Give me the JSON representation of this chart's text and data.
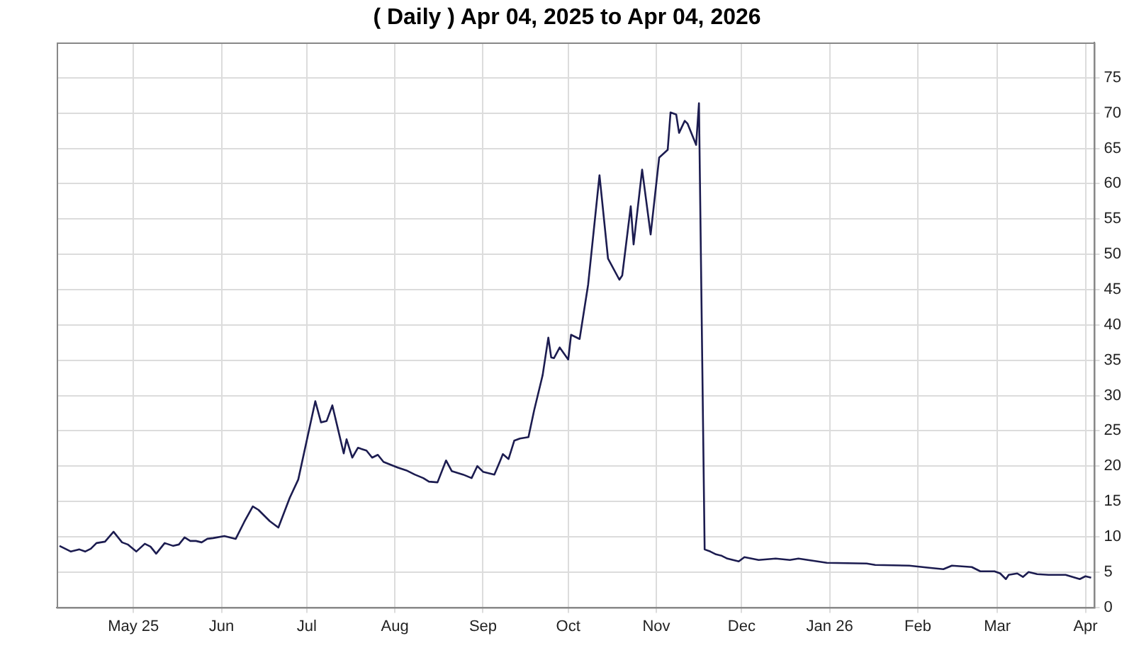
{
  "chart_data": {
    "type": "line",
    "title": "( Daily ) Apr 04, 2025 to Apr 04, 2026",
    "x": [
      "2025-04-05",
      "2025-04-09",
      "2025-04-12",
      "2025-04-14",
      "2025-04-16",
      "2025-04-18",
      "2025-04-21",
      "2025-04-24",
      "2025-04-27",
      "2025-04-29",
      "2025-05-02",
      "2025-05-05",
      "2025-05-07",
      "2025-05-09",
      "2025-05-12",
      "2025-05-15",
      "2025-05-17",
      "2025-05-19",
      "2025-05-21",
      "2025-05-23",
      "2025-05-25",
      "2025-05-27",
      "2025-05-29",
      "2025-06-02",
      "2025-06-06",
      "2025-06-09",
      "2025-06-12",
      "2025-06-14",
      "2025-06-17",
      "2025-06-18",
      "2025-06-21",
      "2025-06-25",
      "2025-06-28",
      "2025-07-04",
      "2025-07-06",
      "2025-07-08",
      "2025-07-10",
      "2025-07-12",
      "2025-07-14",
      "2025-07-15",
      "2025-07-17",
      "2025-07-19",
      "2025-07-22",
      "2025-07-24",
      "2025-07-26",
      "2025-07-28",
      "2025-08-02",
      "2025-08-05",
      "2025-08-08",
      "2025-08-11",
      "2025-08-13",
      "2025-08-16",
      "2025-08-19",
      "2025-08-21",
      "2025-08-25",
      "2025-08-28",
      "2025-08-30",
      "2025-09-01",
      "2025-09-05",
      "2025-09-07",
      "2025-09-08",
      "2025-09-10",
      "2025-09-12",
      "2025-09-14",
      "2025-09-17",
      "2025-09-19",
      "2025-09-22",
      "2025-09-24",
      "2025-09-25",
      "2025-09-26",
      "2025-09-28",
      "2025-10-01",
      "2025-10-02",
      "2025-10-05",
      "2025-10-08",
      "2025-10-12",
      "2025-10-15",
      "2025-10-19",
      "2025-10-20",
      "2025-10-23",
      "2025-10-24",
      "2025-10-27",
      "2025-10-30",
      "2025-11-02",
      "2025-11-05",
      "2025-11-06",
      "2025-11-08",
      "2025-11-09",
      "2025-11-11",
      "2025-11-12",
      "2025-11-15",
      "2025-11-16",
      "2025-11-18",
      "2025-11-20",
      "2025-11-22",
      "2025-11-24",
      "2025-11-26",
      "2025-11-28",
      "2025-11-30",
      "2025-12-02",
      "2025-12-07",
      "2025-12-13",
      "2025-12-18",
      "2025-12-21",
      "2025-12-31",
      "2026-01-14",
      "2026-01-17",
      "2026-01-29",
      "2026-02-05",
      "2026-02-10",
      "2026-02-13",
      "2026-02-20",
      "2026-02-23",
      "2026-02-28",
      "2026-03-02",
      "2026-03-04",
      "2026-03-05",
      "2026-03-08",
      "2026-03-10",
      "2026-03-12",
      "2026-03-15",
      "2026-03-19",
      "2026-03-25",
      "2026-03-30",
      "2026-04-01",
      "2026-04-03"
    ],
    "series": [
      {
        "color": "#1c1c50",
        "values": [
          8.7,
          7.9,
          8.2,
          7.9,
          8.3,
          9.1,
          9.3,
          10.7,
          9.2,
          8.9,
          7.9,
          9.0,
          8.6,
          7.6,
          9.1,
          8.7,
          8.9,
          9.9,
          9.4,
          9.4,
          9.2,
          9.7,
          9.8,
          10.1,
          9.7,
          12.1,
          14.3,
          13.8,
          12.6,
          12.2,
          11.3,
          15.5,
          18.1,
          29.2,
          26.2,
          26.4,
          28.6,
          25.2,
          21.8,
          23.8,
          21.2,
          22.6,
          22.2,
          21.2,
          21.6,
          20.6,
          19.8,
          19.4,
          18.8,
          18.3,
          17.8,
          17.7,
          20.8,
          19.3,
          18.8,
          18.3,
          20.0,
          19.2,
          18.8,
          20.7,
          21.7,
          21.0,
          23.6,
          23.9,
          24.1,
          27.9,
          32.9,
          38.2,
          35.4,
          35.3,
          36.8,
          35.1,
          38.6,
          38.0,
          45.7,
          61.2,
          49.4,
          46.4,
          47.0,
          56.8,
          51.4,
          62.0,
          52.8,
          63.7,
          64.8,
          70.1,
          69.8,
          67.2,
          68.9,
          68.5,
          65.5,
          71.4,
          8.2,
          7.9,
          7.5,
          7.3,
          6.9,
          6.7,
          6.5,
          7.1,
          6.7,
          6.9,
          6.7,
          6.9,
          6.3,
          6.2,
          6.0,
          5.9,
          5.6,
          5.4,
          5.9,
          5.7,
          5.1,
          5.1,
          4.8,
          4.0,
          4.6,
          4.8,
          4.3,
          5.0,
          4.7,
          4.6,
          4.6,
          4.0,
          4.4,
          4.2
        ]
      }
    ],
    "xlim": [
      "2025-04-04",
      "2026-04-04"
    ],
    "xticks": [
      {
        "value": "2025-05-01",
        "label": "May 25"
      },
      {
        "value": "2025-06-01",
        "label": "Jun"
      },
      {
        "value": "2025-07-01",
        "label": "Jul"
      },
      {
        "value": "2025-08-01",
        "label": "Aug"
      },
      {
        "value": "2025-09-01",
        "label": "Sep"
      },
      {
        "value": "2025-10-01",
        "label": "Oct"
      },
      {
        "value": "2025-11-01",
        "label": "Nov"
      },
      {
        "value": "2025-12-01",
        "label": "Dec"
      },
      {
        "value": "2026-01-01",
        "label": "Jan 26"
      },
      {
        "value": "2026-02-01",
        "label": "Feb"
      },
      {
        "value": "2026-03-01",
        "label": "Mar"
      },
      {
        "value": "2026-04-01",
        "label": "Apr"
      }
    ],
    "ylim": [
      0,
      80
    ],
    "yticks": [
      0,
      5,
      10,
      15,
      20,
      25,
      30,
      35,
      40,
      45,
      50,
      55,
      60,
      65,
      70,
      75
    ],
    "grid": true,
    "marker": "none",
    "line_style": "solid"
  }
}
